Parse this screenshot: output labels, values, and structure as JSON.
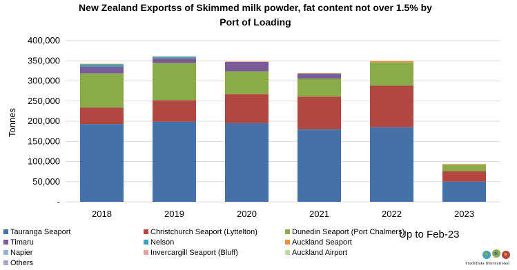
{
  "chart_data": {
    "type": "bar",
    "stacked": true,
    "title": "New Zealand Exportss of Skimmed milk powder, fat content not over 1.5% by Port of Loading",
    "title_lines": [
      "New Zealand Exportss of Skimmed milk powder, fat content not over 1.5% by",
      "Port of Loading"
    ],
    "ylabel": "Tonnes",
    "xlabel": "",
    "ylim": [
      0,
      400000
    ],
    "yticks": [
      0,
      50000,
      100000,
      150000,
      200000,
      250000,
      300000,
      350000,
      400000
    ],
    "ytick_labels": [
      "-",
      "50,000",
      "100,000",
      "150,000",
      "200,000",
      "250,000",
      "300,000",
      "350,000",
      "400,000"
    ],
    "categories": [
      "2018",
      "2019",
      "2020",
      "2021",
      "2022",
      "2023"
    ],
    "series": [
      {
        "name": "Tauranga Seaport",
        "color": "#4472a8",
        "values": [
          193000,
          199000,
          195000,
          180000,
          185000,
          50000
        ]
      },
      {
        "name": "Christchurch Seaport (Lyttelton)",
        "color": "#b24742",
        "values": [
          41000,
          53000,
          72000,
          81000,
          103000,
          26000
        ]
      },
      {
        "name": "Dunedin Seaport (Port Chalmers)",
        "color": "#8aab4a",
        "values": [
          85000,
          93000,
          57000,
          45000,
          58000,
          16000
        ]
      },
      {
        "name": "Timaru",
        "color": "#7b5a9c",
        "values": [
          16000,
          11000,
          23000,
          11000,
          0,
          0
        ]
      },
      {
        "name": "Nelson",
        "color": "#3fa1bd",
        "values": [
          6000,
          4000,
          0,
          1500,
          0,
          0
        ]
      },
      {
        "name": "Auckland Seaport",
        "color": "#ee8e3a",
        "values": [
          1500,
          1000,
          1000,
          1000,
          3000,
          1500
        ]
      },
      {
        "name": "Napier",
        "color": "#95b3d7",
        "values": [
          0,
          0,
          0,
          0,
          0,
          0
        ]
      },
      {
        "name": "Invercargill Seaport (Bluff)",
        "color": "#e49e9c",
        "values": [
          0,
          0,
          0,
          0,
          0,
          0
        ]
      },
      {
        "name": "Auckland Airport",
        "color": "#c3d69b",
        "values": [
          0,
          0,
          0,
          0,
          0,
          0
        ]
      },
      {
        "name": "Others",
        "color": "#b2a2c7",
        "values": [
          0,
          0,
          0,
          0,
          0,
          0
        ]
      }
    ],
    "gridlines": true,
    "legend_position": "bottom",
    "annotation": {
      "prefix": "Up to",
      "value": "Feb-23"
    }
  },
  "branding": {
    "name": "TradeData International",
    "icon": "globe-icon"
  }
}
